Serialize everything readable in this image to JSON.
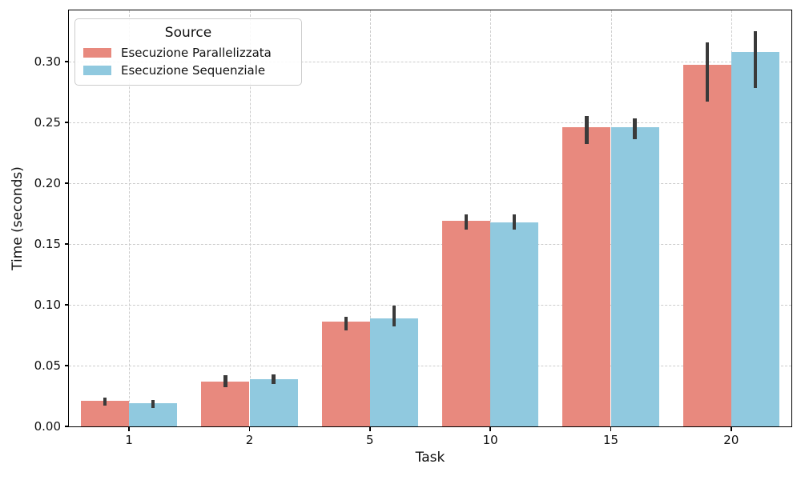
{
  "chart_data": {
    "type": "bar",
    "title": "",
    "xlabel": "Task",
    "ylabel": "Time (seconds)",
    "categories": [
      "1",
      "2",
      "5",
      "10",
      "15",
      "20"
    ],
    "series": [
      {
        "name": "Esecuzione Parallelizzata",
        "color": "#E8897E",
        "values": [
          0.021,
          0.037,
          0.086,
          0.169,
          0.246,
          0.297
        ],
        "err_low": [
          0.017,
          0.032,
          0.079,
          0.162,
          0.232,
          0.267
        ],
        "err_high": [
          0.024,
          0.042,
          0.09,
          0.174,
          0.255,
          0.316
        ]
      },
      {
        "name": "Esecuzione Sequenziale",
        "color": "#90C9DF",
        "values": [
          0.019,
          0.039,
          0.089,
          0.168,
          0.246,
          0.308
        ],
        "err_low": [
          0.015,
          0.035,
          0.082,
          0.162,
          0.236,
          0.278
        ],
        "err_high": [
          0.022,
          0.043,
          0.099,
          0.174,
          0.253,
          0.325
        ]
      }
    ],
    "legend": {
      "title": "Source",
      "position": "upper-left"
    },
    "ylim": [
      0,
      0.342
    ],
    "yticks": [
      "0.00",
      "0.05",
      "0.10",
      "0.15",
      "0.20",
      "0.25",
      "0.30"
    ],
    "grid": true,
    "grid_color": "#cccccc",
    "errorbar_color": "#3A3A3A",
    "bar_group_fraction": 0.8
  }
}
